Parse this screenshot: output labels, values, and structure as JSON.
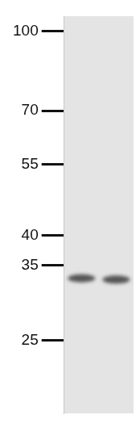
{
  "chart_data": {
    "type": "blot",
    "categories": [
      null,
      null
    ],
    "values": [
      33,
      32.8
    ],
    "log": "y",
    "ylim": [
      18,
      107
    ],
    "yticks": [
      100,
      70,
      55,
      40,
      35,
      25
    ],
    "tick_labels": "y",
    "grid": false
  }
}
